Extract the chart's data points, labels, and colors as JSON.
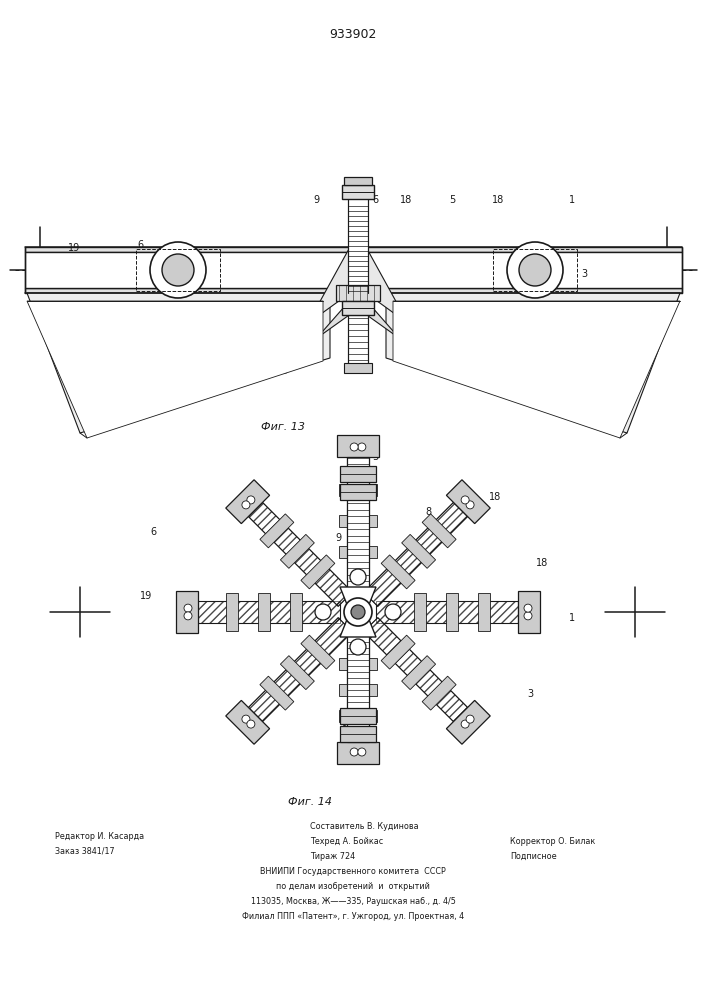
{
  "patent_number": "933902",
  "fig13_label": "Фиг. 13",
  "fig14_label": "Фиг. 14",
  "footer_line1_left": "Редактор И. Касарда",
  "footer_line2_left": "Заказ 3841/17",
  "footer_line1_center": "Составитель В. Кудинова",
  "footer_line2_center": "Техред А. Бойкас",
  "footer_line3_center": "Тираж 724",
  "footer_line1_right": "Корректор О. Билак",
  "footer_line2_right": "Подписное",
  "footer_vniiipi": "ВНИИПИ Государственного комитета  СССР",
  "footer_po": "по делам изобретений  и  открытий",
  "footer_addr1": "113035, Москва, Ж——335, Раушская наб., д. 4/5",
  "footer_addr2": "Филиал ППП «Патент», г. Ужгород, ул. Проектная, 4",
  "bg_color": "#ffffff",
  "line_color": "#1a1a1a"
}
